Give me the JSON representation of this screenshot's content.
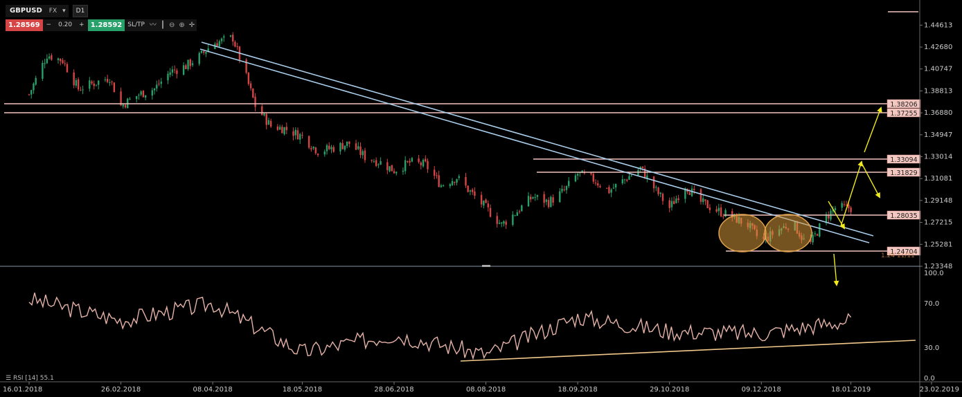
{
  "toolbar": {
    "symbol": "GBPUSD",
    "market": "FX",
    "market_chevron": "chevron-down-icon",
    "timeframe": "D1",
    "bid": "1.28569",
    "minus": "−",
    "spread": "0.20",
    "plus": "+",
    "ask": "1.28592",
    "sltp": "SL/TP",
    "icons": [
      "line-chart-icon",
      "candles-icon",
      "zoom-out-icon",
      "zoom-in-icon",
      "crosshair-icon"
    ]
  },
  "rsi_panel": {
    "label": "RSI [14] 55.1",
    "menu_icon": "menu-icon"
  },
  "colors": {
    "up": "#27a06a",
    "down": "#d64545",
    "trend": "#a9cdea",
    "level": "#f2c4be",
    "arrow": "#f2ea1c",
    "rsi": "#e6b3a8",
    "rsi_trend": "#f2c98a"
  },
  "chart_data": [
    {
      "type": "candlestick",
      "title": "",
      "x": [
        "16.01.2018",
        "26.02.2018",
        "08.04.2018",
        "18.05.2018",
        "28.06.2018",
        "08.08.2018",
        "18.09.2018",
        "29.10.2018",
        "09.12.2018",
        "18.01.2019",
        "23.02.2019"
      ],
      "x_range": [
        "16.01.2018",
        "23.02.2019"
      ],
      "y_ticks": [
        "1.44613",
        "1.42680",
        "1.40747",
        "1.38813",
        "1.36880",
        "1.34947",
        "1.33014",
        "1.31081",
        "1.29148",
        "1.27215",
        "1.25281",
        "1.23348"
      ],
      "ylim": [
        1.23348,
        1.45
      ],
      "close_path": [
        [
          "16.01.2018",
          1.385
        ],
        [
          "24.01.2018",
          1.42
        ],
        [
          "31.01.2018",
          1.415
        ],
        [
          "07.02.2018",
          1.39
        ],
        [
          "14.02.2018",
          1.395
        ],
        [
          "21.02.2018",
          1.4
        ],
        [
          "26.02.2018",
          1.375
        ],
        [
          "06.03.2018",
          1.385
        ],
        [
          "13.03.2018",
          1.39
        ],
        [
          "20.03.2018",
          1.405
        ],
        [
          "27.03.2018",
          1.41
        ],
        [
          "03.04.2018",
          1.42
        ],
        [
          "08.04.2018",
          1.43
        ],
        [
          "17.04.2018",
          1.435
        ],
        [
          "23.04.2018",
          1.4
        ],
        [
          "27.04.2018",
          1.375
        ],
        [
          "04.05.2018",
          1.357
        ],
        [
          "10.05.2018",
          1.355
        ],
        [
          "18.05.2018",
          1.348
        ],
        [
          "25.05.2018",
          1.335
        ],
        [
          "01.06.2018",
          1.338
        ],
        [
          "08.06.2018",
          1.342
        ],
        [
          "15.06.2018",
          1.33
        ],
        [
          "22.06.2018",
          1.325
        ],
        [
          "28.06.2018",
          1.318
        ],
        [
          "05.07.2018",
          1.325
        ],
        [
          "12.07.2018",
          1.323
        ],
        [
          "19.07.2018",
          1.305
        ],
        [
          "26.07.2018",
          1.312
        ],
        [
          "02.08.2018",
          1.297
        ],
        [
          "08.08.2018",
          1.285
        ],
        [
          "15.08.2018",
          1.27
        ],
        [
          "22.08.2018",
          1.282
        ],
        [
          "29.08.2018",
          1.295
        ],
        [
          "05.09.2018",
          1.29
        ],
        [
          "12.09.2018",
          1.3
        ],
        [
          "18.09.2018",
          1.315
        ],
        [
          "25.09.2018",
          1.31
        ],
        [
          "02.10.2018",
          1.3
        ],
        [
          "09.10.2018",
          1.31
        ],
        [
          "16.10.2018",
          1.32
        ],
        [
          "23.10.2018",
          1.3
        ],
        [
          "29.10.2018",
          1.285
        ],
        [
          "05.11.2018",
          1.305
        ],
        [
          "12.11.2018",
          1.29
        ],
        [
          "19.11.2018",
          1.283
        ],
        [
          "26.11.2018",
          1.277
        ],
        [
          "03.12.2018",
          1.27
        ],
        [
          "09.12.2018",
          1.255
        ],
        [
          "16.12.2018",
          1.265
        ],
        [
          "23.12.2018",
          1.272
        ],
        [
          "30.12.2018",
          1.25
        ],
        [
          "06.01.2019",
          1.275
        ],
        [
          "11.01.2019",
          1.285
        ],
        [
          "18.01.2019",
          1.285
        ]
      ],
      "last_price": "1.28569"
    },
    {
      "type": "line",
      "title": "RSI [14] 55.1",
      "y_ticks": [
        "100.0",
        "70.0",
        "30.0",
        "0.0"
      ],
      "ylim": [
        0,
        100
      ],
      "x": [
        "16.01.2018",
        "26.02.2018",
        "08.04.2018",
        "18.05.2018",
        "28.06.2018",
        "08.08.2018",
        "18.09.2018",
        "29.10.2018",
        "09.12.2018",
        "18.01.2019"
      ],
      "values": [
        74,
        55,
        70,
        26,
        42,
        24,
        58,
        45,
        43,
        55
      ]
    }
  ],
  "annotations": {
    "price_labels": [
      "1.38206",
      "1.37255",
      "1.33094",
      "1.31829",
      "1.28035",
      "1.24704"
    ],
    "overlap_text": "1.24 11/11"
  }
}
